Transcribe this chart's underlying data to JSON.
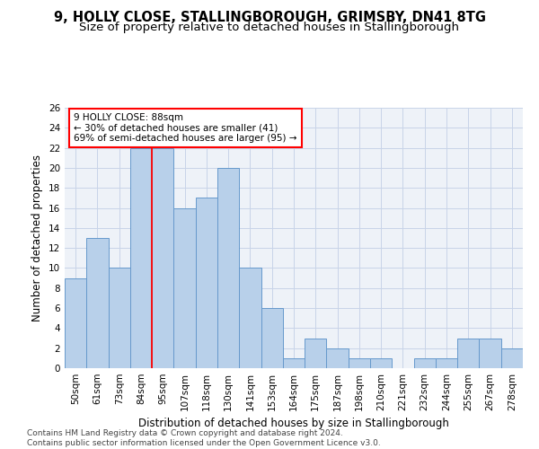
{
  "title1": "9, HOLLY CLOSE, STALLINGBOROUGH, GRIMSBY, DN41 8TG",
  "title2": "Size of property relative to detached houses in Stallingborough",
  "xlabel": "Distribution of detached houses by size in Stallingborough",
  "ylabel": "Number of detached properties",
  "categories": [
    "50sqm",
    "61sqm",
    "73sqm",
    "84sqm",
    "95sqm",
    "107sqm",
    "118sqm",
    "130sqm",
    "141sqm",
    "153sqm",
    "164sqm",
    "175sqm",
    "187sqm",
    "198sqm",
    "210sqm",
    "221sqm",
    "232sqm",
    "244sqm",
    "255sqm",
    "267sqm",
    "278sqm"
  ],
  "values": [
    9,
    13,
    10,
    22,
    22,
    16,
    17,
    20,
    10,
    6,
    1,
    3,
    2,
    1,
    1,
    0,
    1,
    1,
    3,
    3,
    2
  ],
  "bar_color": "#b8d0ea",
  "bar_edge_color": "#6699cc",
  "grid_color": "#c8d4e8",
  "annotation_line1": "9 HOLLY CLOSE: 88sqm",
  "annotation_line2": "← 30% of detached houses are smaller (41)",
  "annotation_line3": "69% of semi-detached houses are larger (95) →",
  "vline_index": 3.5,
  "vline_color": "red",
  "ann_box_facecolor": "white",
  "ann_box_edgecolor": "red",
  "ylim": [
    0,
    26
  ],
  "yticks": [
    0,
    2,
    4,
    6,
    8,
    10,
    12,
    14,
    16,
    18,
    20,
    22,
    24,
    26
  ],
  "footer": "Contains HM Land Registry data © Crown copyright and database right 2024.\nContains public sector information licensed under the Open Government Licence v3.0.",
  "bg_color": "#eef2f8",
  "title1_fontsize": 10.5,
  "title2_fontsize": 9.5,
  "xlabel_fontsize": 8.5,
  "ylabel_fontsize": 8.5,
  "tick_fontsize": 7.5,
  "ann_fontsize": 7.5,
  "footer_fontsize": 6.5
}
